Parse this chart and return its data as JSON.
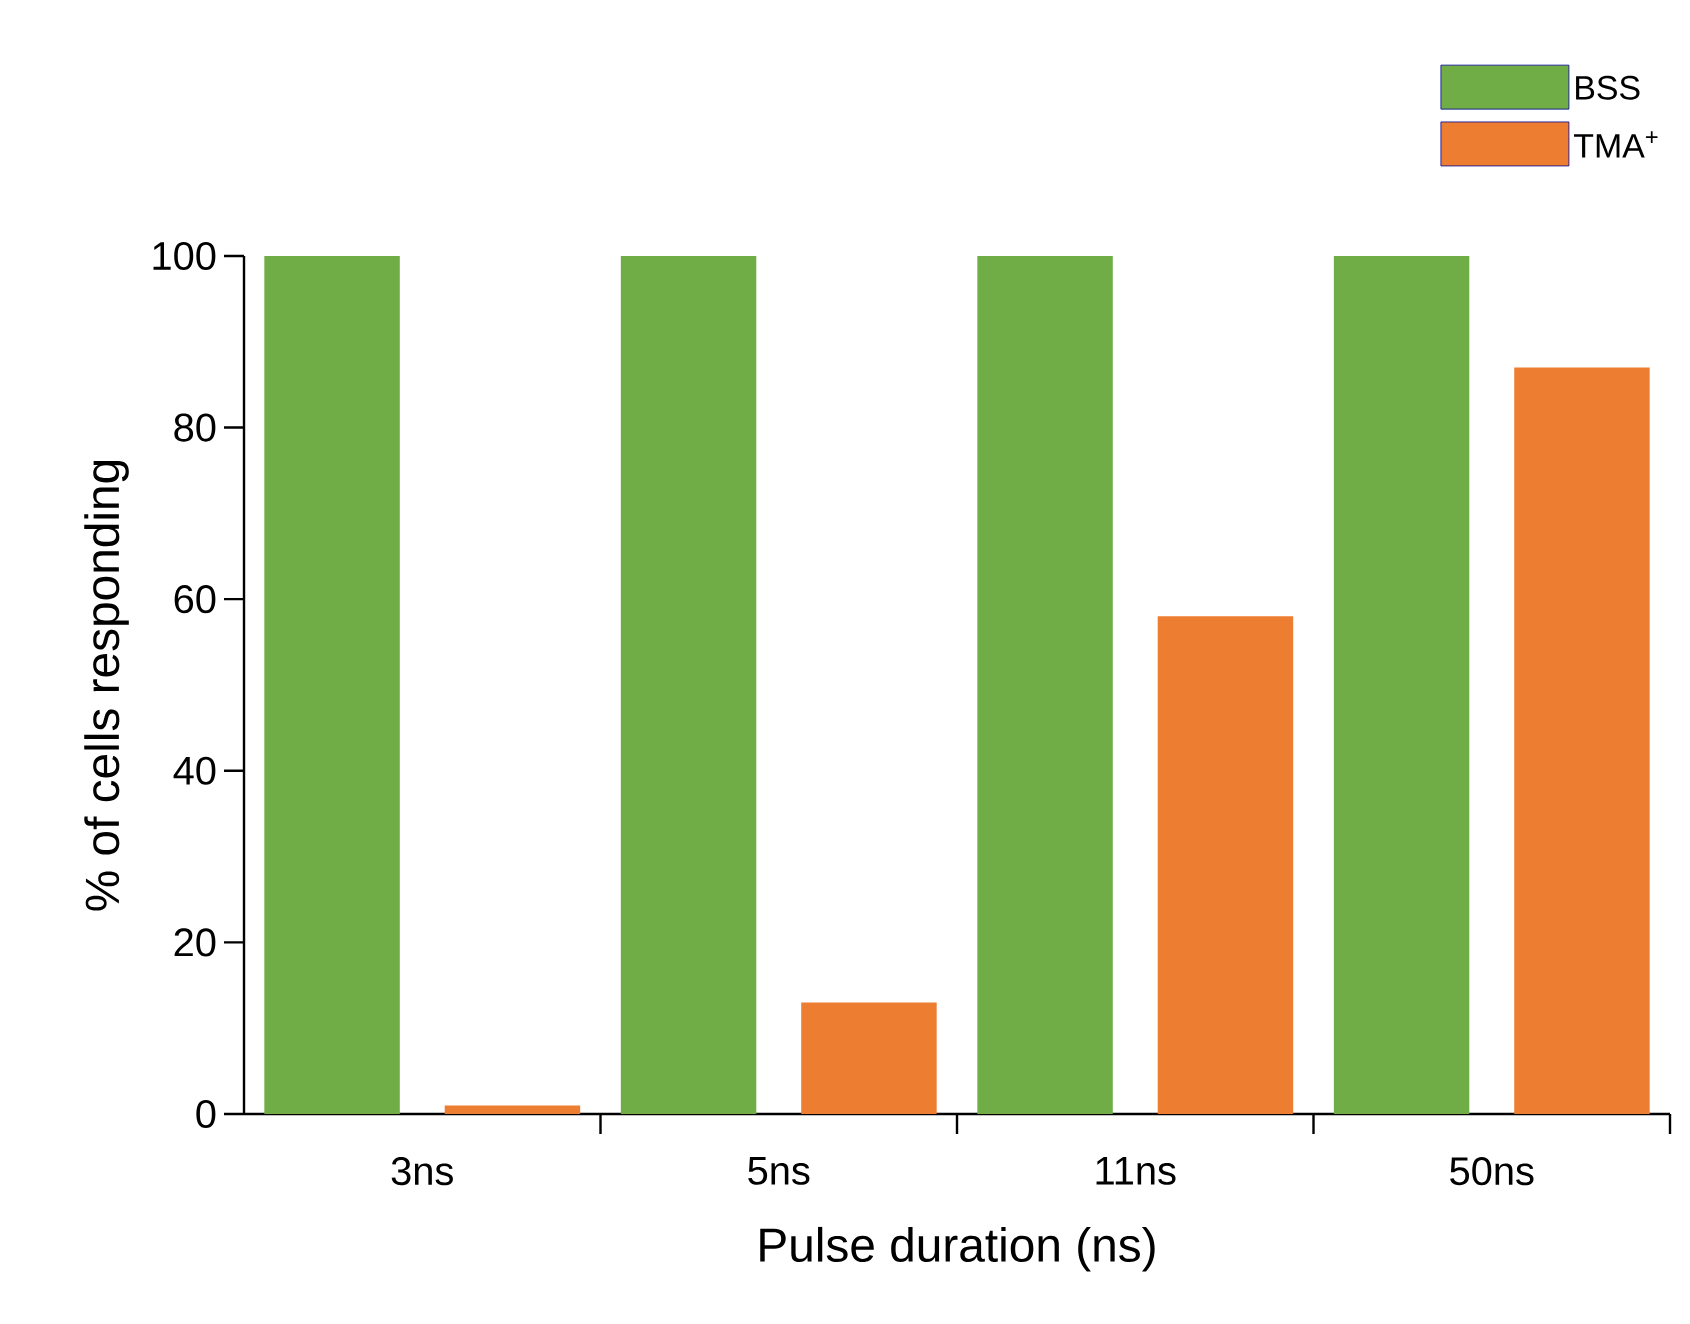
{
  "chart_data": {
    "type": "bar",
    "categories": [
      "3ns",
      "5ns",
      "11ns",
      "50ns"
    ],
    "series": [
      {
        "name": "BSS",
        "color": "#70ad47",
        "values": [
          100,
          100,
          100,
          100
        ]
      },
      {
        "name": "TMA$^{+}$",
        "color": "#ed7d31",
        "values": [
          1,
          13,
          58,
          87
        ]
      }
    ],
    "xlabel": "Pulse duration (ns)",
    "ylabel": "% of cells responding",
    "ylim": [
      0,
      100
    ],
    "yticks": [
      0,
      20,
      40,
      60,
      80,
      100
    ],
    "legend": "top right"
  }
}
